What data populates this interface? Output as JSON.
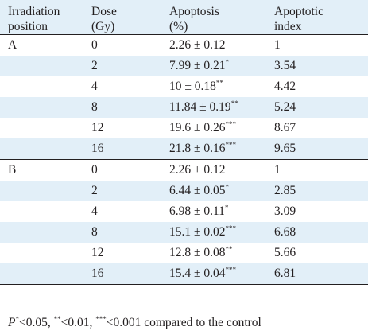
{
  "table": {
    "headers": [
      {
        "line1": "Irradiation",
        "line2": "position"
      },
      {
        "line1": "Dose",
        "line2": "(Gy)"
      },
      {
        "line1": "Apoptosis",
        "line2": "(%)"
      },
      {
        "line1": "Apoptotic",
        "line2": "index"
      }
    ],
    "rows": [
      {
        "position": "A",
        "dose": "0",
        "apoptosis": "2.26 ± 0.12",
        "sig": "",
        "index": "1"
      },
      {
        "position": "",
        "dose": "2",
        "apoptosis": "7.99 ± 0.21",
        "sig": "*",
        "index": "3.54"
      },
      {
        "position": "",
        "dose": "4",
        "apoptosis": "10 ± 0.18",
        "sig": "**",
        "index": "4.42"
      },
      {
        "position": "",
        "dose": "8",
        "apoptosis": "11.84 ± 0.19",
        "sig": "**",
        "index": "5.24"
      },
      {
        "position": "",
        "dose": "12",
        "apoptosis": "19.6 ± 0.26",
        "sig": "***",
        "index": "8.67"
      },
      {
        "position": "",
        "dose": "16",
        "apoptosis": "21.8 ± 0.16",
        "sig": "***",
        "index": "9.65"
      },
      {
        "position": "B",
        "dose": "0",
        "apoptosis": "2.26 ± 0.12",
        "sig": "",
        "index": "1"
      },
      {
        "position": "",
        "dose": "2",
        "apoptosis": "6.44 ± 0.05",
        "sig": "*",
        "index": "2.85"
      },
      {
        "position": "",
        "dose": "4",
        "apoptosis": "6.98 ± 0.11",
        "sig": "*",
        "index": "3.09"
      },
      {
        "position": "",
        "dose": "8",
        "apoptosis": "15.1 ± 0.02",
        "sig": "***",
        "index": "6.68"
      },
      {
        "position": "",
        "dose": "12",
        "apoptosis": "12.8 ± 0.08",
        "sig": "**",
        "index": "5.66"
      },
      {
        "position": "",
        "dose": "16",
        "apoptosis": "15.4 ± 0.04",
        "sig": "***",
        "index": "6.81"
      }
    ]
  },
  "footnote": {
    "p_symbol": "P",
    "sig1": "*",
    "text1": "<0.05, ",
    "sig2": "**",
    "text2": "<0.01, ",
    "sig3": "***",
    "text3": "<0.001 compared to the control"
  },
  "colors": {
    "stripe": "#e2eff8",
    "text": "#231f20",
    "rule": "#231f20"
  }
}
